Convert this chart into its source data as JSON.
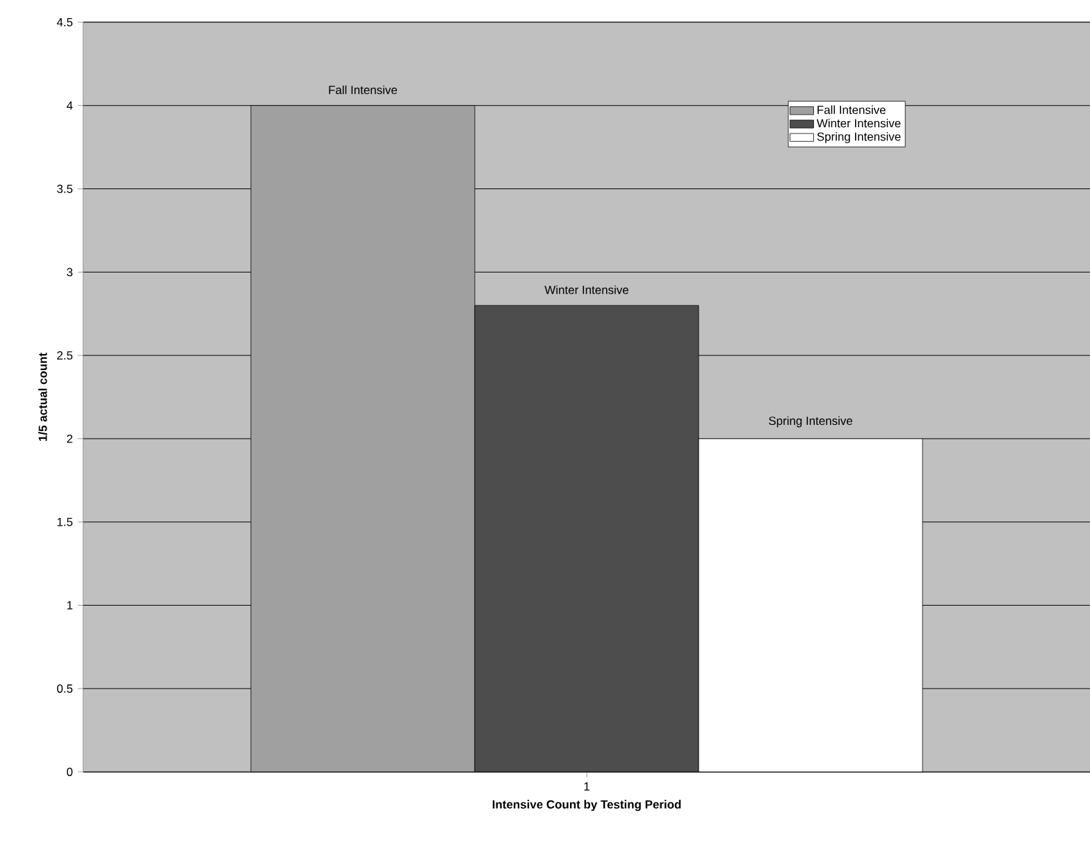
{
  "chart_data": {
    "type": "bar",
    "xlabel": "Intensive Count by Testing Period",
    "ylabel": "1/5 actual count",
    "categories": [
      "1"
    ],
    "series": [
      {
        "name": "Fall Intensive",
        "color": "#a0a0a0",
        "values": [
          4
        ]
      },
      {
        "name": "Winter Intensive",
        "color": "#4d4d4d",
        "values": [
          2.8
        ]
      },
      {
        "name": "Spring Intensive",
        "color": "#ffffff",
        "values": [
          2
        ]
      }
    ],
    "annotations": [
      "Fall Intensive",
      "Winter Intensive",
      "Spring Intensive"
    ],
    "ylim": [
      0,
      4.5
    ],
    "yticks": [
      0,
      0.5,
      1,
      1.5,
      2,
      2.5,
      3,
      3.5,
      4,
      4.5
    ],
    "grid": "y",
    "legend": "top right"
  }
}
